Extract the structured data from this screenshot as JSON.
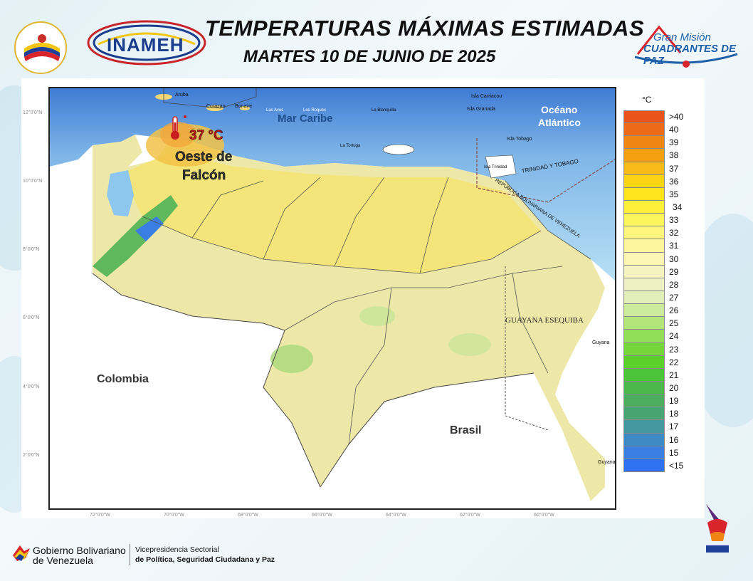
{
  "header": {
    "title": "TEMPERATURAS MÁXIMAS ESTIMADAS",
    "date": "MARTES 10 DE JUNIO DE 2025",
    "logo_left": "INAMEH",
    "logo_right_line1": "Gran Misión",
    "logo_right_line2": "CUADRANTES DE PAZ"
  },
  "map": {
    "lat_labels": [
      "12°0'0\"N",
      "10°0'0\"N",
      "8°0'0\"N",
      "6°0'0\"N",
      "4°0'0\"N",
      "2°0'0\"N"
    ],
    "lon_labels": [
      "72°0'0\"W",
      "70°0'0\"W",
      "68°0'0\"W",
      "66°0'0\"W",
      "64°0'0\"W",
      "62°0'0\"W",
      "60°0'0\"W"
    ],
    "seas": {
      "caribbean": "Mar Caribe",
      "atlantic_l1": "Océano",
      "atlantic_l2": "Atlántico"
    },
    "countries": {
      "colombia": "Colombia",
      "brasil": "Brasil",
      "guayana": "GUAYANA ESEQUIBA",
      "trinidad": "TRINIDAD Y TOBAGO",
      "maritime": "REPÚBLICA BOLIVARIANA DE VENEZUELA"
    },
    "islands": {
      "aruba": "Aruba",
      "curazao": "Curazao",
      "bonaire": "Bonaire",
      "los_roques": "Los Roques",
      "las_aves": "Las Aves",
      "la_blanquilla": "La Blanquilla",
      "la_tortuga": "La Tortuga",
      "carriacou": "Isla Carriacou",
      "granada": "Isla Granada",
      "tobago": "Isla Tobago",
      "trinidad": "Isla Trinidad",
      "guyana_north": "Guyana",
      "guyana_south": "Guyana"
    },
    "highlight": {
      "value": "37 °C",
      "line1": "Oeste de",
      "line2": "Falcón"
    }
  },
  "legend": {
    "unit": "°C",
    "items": [
      {
        "label": ">40",
        "color": "#e8541c"
      },
      {
        "label": "40",
        "color": "#ec6a18"
      },
      {
        "label": "39",
        "color": "#f08414"
      },
      {
        "label": "38",
        "color": "#f5a010"
      },
      {
        "label": "37",
        "color": "#f8ba18"
      },
      {
        "label": "36",
        "color": "#fcd414"
      },
      {
        "label": "35",
        "color": "#fee41c"
      },
      {
        "label": "34",
        "color": "#fef03a"
      },
      {
        "label": "33",
        "color": "#fef45c"
      },
      {
        "label": "32",
        "color": "#fef57e"
      },
      {
        "label": "31",
        "color": "#fdf69c"
      },
      {
        "label": "30",
        "color": "#fbf6b4"
      },
      {
        "label": "29",
        "color": "#f5f3c0"
      },
      {
        "label": "28",
        "color": "#eef1c4"
      },
      {
        "label": "27",
        "color": "#e2efb8"
      },
      {
        "label": "26",
        "color": "#cdeb9c"
      },
      {
        "label": "25",
        "color": "#b2e57a"
      },
      {
        "label": "24",
        "color": "#93de58"
      },
      {
        "label": "23",
        "color": "#74d63a"
      },
      {
        "label": "22",
        "color": "#5cd02a"
      },
      {
        "label": "21",
        "color": "#4cc43a"
      },
      {
        "label": "20",
        "color": "#4cb84c"
      },
      {
        "label": "19",
        "color": "#4cad5e"
      },
      {
        "label": "18",
        "color": "#48a472"
      },
      {
        "label": "17",
        "color": "#4598a0"
      },
      {
        "label": "16",
        "color": "#3e8ac6"
      },
      {
        "label": "15",
        "color": "#3a7ee2"
      },
      {
        "label": "<15",
        "color": "#2e72f2"
      }
    ]
  },
  "footer": {
    "gob_line1": "Gobierno Bolivariano",
    "gob_line2": "de Venezuela",
    "vice_line1": "Vicepresidencia Sectorial",
    "vice_line2": "de Política, Seguridad Ciudadana y Paz"
  }
}
